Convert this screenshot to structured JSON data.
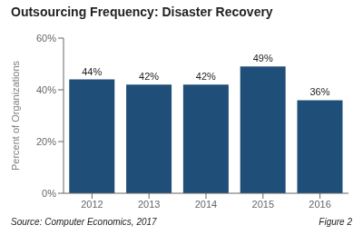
{
  "chart_data": {
    "type": "bar",
    "title": "Outsourcing Frequency: Disaster Recovery",
    "categories": [
      "2012",
      "2013",
      "2014",
      "2015",
      "2016"
    ],
    "values": [
      44,
      42,
      42,
      49,
      36
    ],
    "value_labels": [
      "44%",
      "42%",
      "42%",
      "49%",
      "36%"
    ],
    "data_labels": true,
    "color": "#1F4E79",
    "ylabel": "Percent of Organizations",
    "ylim": [
      0,
      60
    ],
    "yticks": [
      {
        "value": 0,
        "label": "0%"
      },
      {
        "value": 20,
        "label": "20%"
      },
      {
        "value": 40,
        "label": "40%"
      },
      {
        "value": 60,
        "label": "60%"
      }
    ],
    "grid": false,
    "annotations": [
      "Source: Computer Economics, 2017",
      "Figure 2"
    ]
  }
}
